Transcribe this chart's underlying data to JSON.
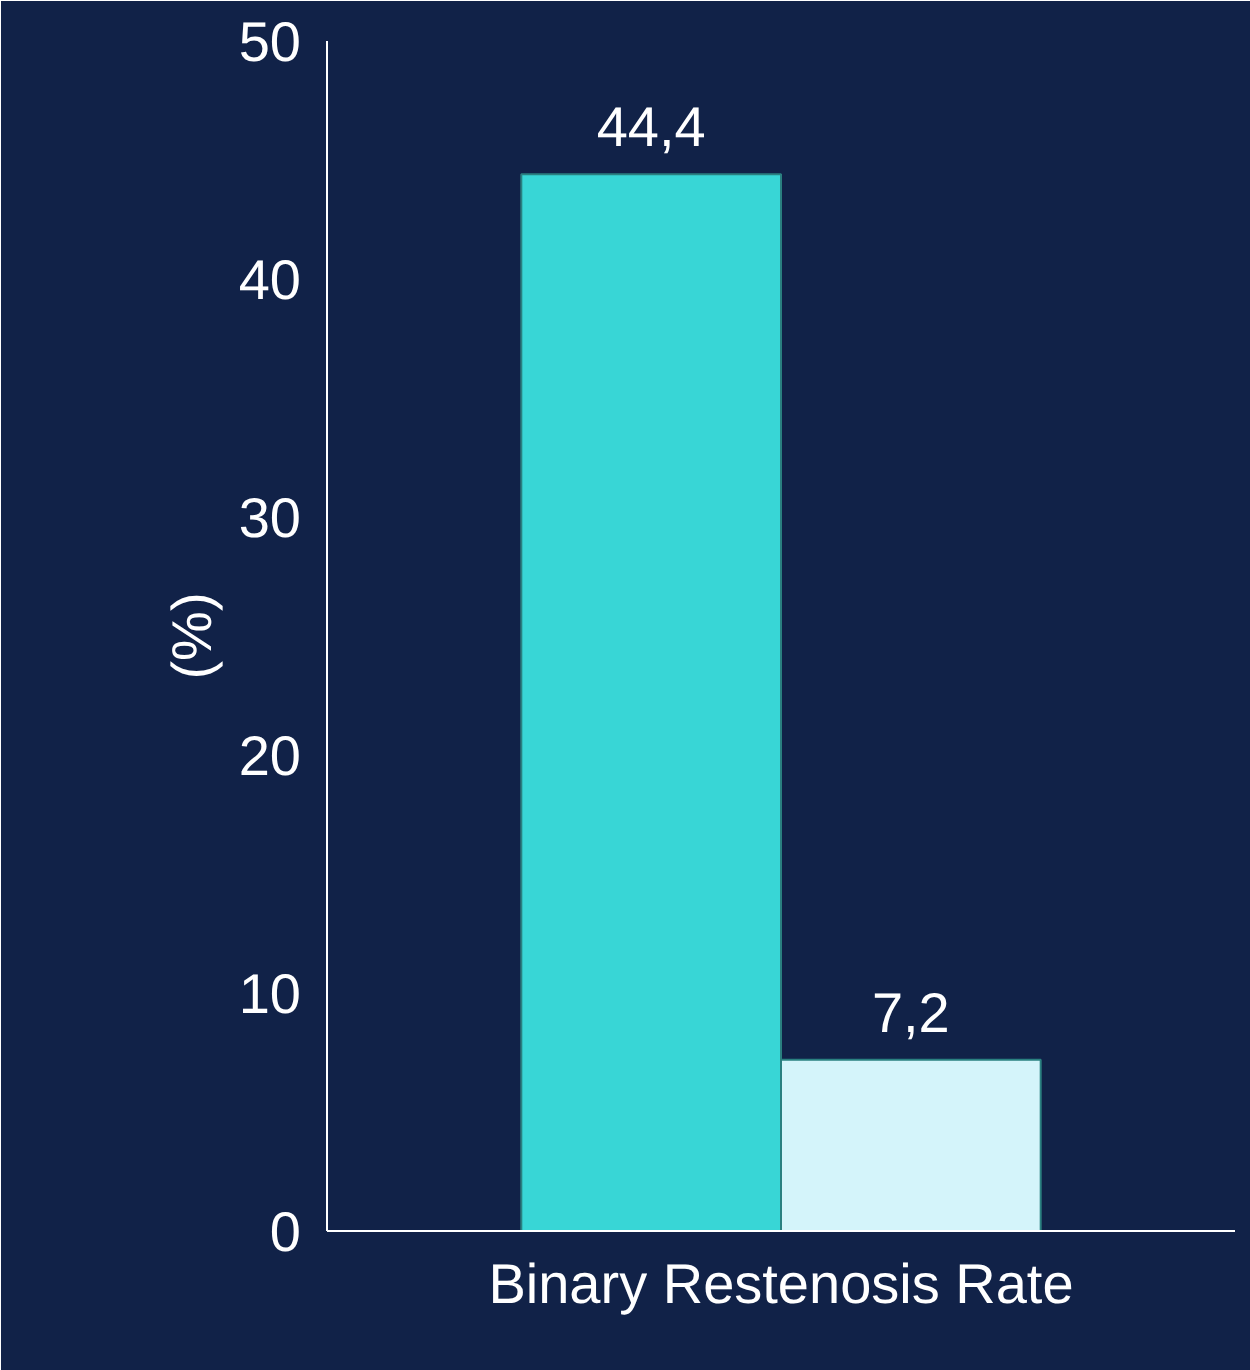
{
  "chart_data": {
    "type": "bar",
    "ylabel": "(%)",
    "categories": [
      "Binary Restenosis Rate"
    ],
    "series": [
      {
        "color": "#38d6d6",
        "values": [
          44.4
        ],
        "value_labels": [
          "44,4"
        ]
      },
      {
        "color": "#d4f4fa",
        "values": [
          7.2
        ],
        "value_labels": [
          "7,2"
        ]
      }
    ],
    "ylim": [
      0,
      50
    ],
    "yticks": [
      0,
      10,
      20,
      30,
      40,
      50
    ],
    "grid": false
  }
}
